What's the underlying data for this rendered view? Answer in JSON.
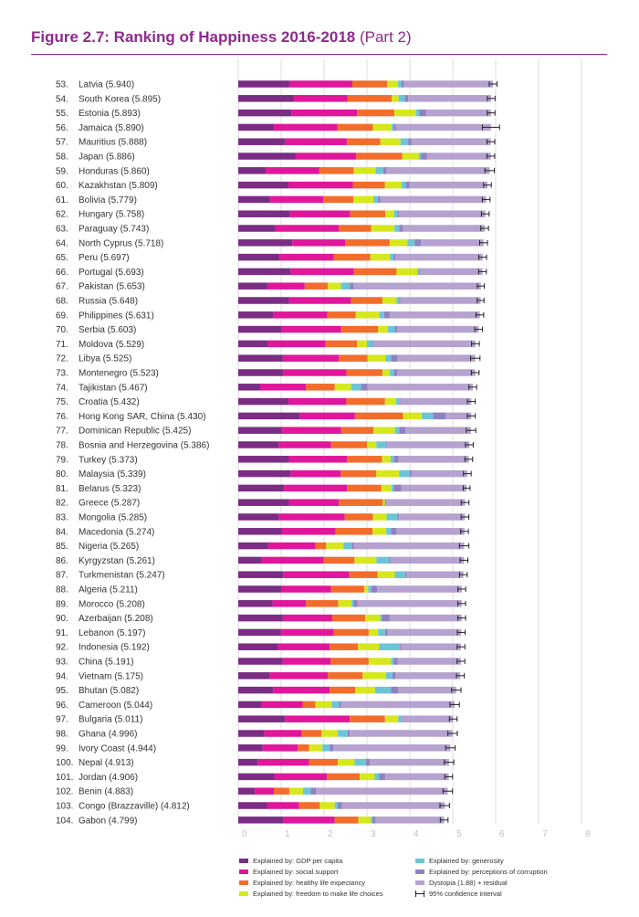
{
  "figure": {
    "title": "Figure 2.7: Ranking of Happiness 2016-2018",
    "subtitle": "(Part 2)"
  },
  "colors": {
    "gdp": "#7a2d82",
    "social": "#e0169b",
    "health": "#f26d2b",
    "freedom": "#d6e81c",
    "generosity": "#6cc5d6",
    "corruption": "#8e82c1",
    "dystopia": "#b5a2cf",
    "ci": "#222222",
    "grid": "#dcdcdc"
  },
  "legend": {
    "items": [
      {
        "key": "gdp",
        "label": "Explained by: GDP per capita"
      },
      {
        "key": "social",
        "label": "Explained by: social support"
      },
      {
        "key": "health",
        "label": "Explained by: healthy life expectancy"
      },
      {
        "key": "freedom",
        "label": "Explained by: freedom to make life choices"
      },
      {
        "key": "generosity",
        "label": "Explained by: generosity"
      },
      {
        "key": "corruption",
        "label": "Explained by: perceptions of corruption"
      },
      {
        "key": "dystopia",
        "label": "Dystopia (1.88) + residual"
      },
      {
        "key": "ci",
        "label": "95% confidence interval"
      }
    ]
  },
  "chart_data": {
    "type": "bar",
    "orientation": "horizontal",
    "stacked": true,
    "xlim": [
      0,
      8
    ],
    "x_ticks": [
      "0",
      "1",
      "2",
      "3",
      "4",
      "5",
      "6",
      "7",
      "8"
    ],
    "grid": true,
    "components": [
      "gdp",
      "social",
      "health",
      "freedom",
      "generosity",
      "corruption",
      "dystopia"
    ],
    "rows": [
      {
        "rank": "53.",
        "name": "Latvia (5.940)",
        "score": 5.94,
        "ci": 0.09,
        "parts": [
          1.19,
          1.47,
          0.81,
          0.25,
          0.08,
          0.06
        ]
      },
      {
        "rank": "54.",
        "name": "South Korea (5.895)",
        "score": 5.895,
        "ci": 0.09,
        "parts": [
          1.3,
          1.25,
          1.03,
          0.16,
          0.14,
          0.08
        ]
      },
      {
        "rank": "55.",
        "name": "Estonia (5.893)",
        "score": 5.893,
        "ci": 0.09,
        "parts": [
          1.24,
          1.53,
          0.87,
          0.5,
          0.08,
          0.16
        ]
      },
      {
        "rank": "56.",
        "name": "Jamaica (5.890)",
        "score": 5.89,
        "ci": 0.2,
        "parts": [
          0.82,
          1.49,
          0.83,
          0.43,
          0.05,
          0.05
        ]
      },
      {
        "rank": "57.",
        "name": "Mauritius (5.888)",
        "score": 5.888,
        "ci": 0.09,
        "parts": [
          1.1,
          1.43,
          0.78,
          0.47,
          0.18,
          0.08
        ]
      },
      {
        "rank": "58.",
        "name": "Japan (5.886)",
        "score": 5.886,
        "ci": 0.09,
        "parts": [
          1.33,
          1.42,
          1.07,
          0.39,
          0.05,
          0.14
        ]
      },
      {
        "rank": "59.",
        "name": "Honduras (5.860)",
        "score": 5.86,
        "ci": 0.11,
        "parts": [
          0.64,
          1.25,
          0.8,
          0.51,
          0.18,
          0.08
        ]
      },
      {
        "rank": "60.",
        "name": "Kazakhstan (5.809)",
        "score": 5.809,
        "ci": 0.09,
        "parts": [
          1.17,
          1.5,
          0.75,
          0.38,
          0.1,
          0.09
        ]
      },
      {
        "rank": "61.",
        "name": "Bolivia (5.779)",
        "score": 5.779,
        "ci": 0.09,
        "parts": [
          0.75,
          1.23,
          0.7,
          0.47,
          0.1,
          0.06
        ]
      },
      {
        "rank": "62.",
        "name": "Hungary (5.758)",
        "score": 5.758,
        "ci": 0.09,
        "parts": [
          1.2,
          1.41,
          0.82,
          0.2,
          0.08,
          0.04
        ]
      },
      {
        "rank": "63.",
        "name": "Paraguay (5.743)",
        "score": 5.743,
        "ci": 0.09,
        "parts": [
          0.87,
          1.47,
          0.76,
          0.54,
          0.11,
          0.08
        ]
      },
      {
        "rank": "64.",
        "name": "North Cyprus (5.718)",
        "score": 5.718,
        "ci": 0.09,
        "parts": [
          1.26,
          1.23,
          1.04,
          0.41,
          0.17,
          0.15
        ]
      },
      {
        "rank": "65.",
        "name": "Peru (5.697)",
        "score": 5.697,
        "ci": 0.09,
        "parts": [
          0.96,
          1.27,
          0.85,
          0.46,
          0.08,
          0.04
        ]
      },
      {
        "rank": "66.",
        "name": "Portugal (5.693)",
        "score": 5.693,
        "ci": 0.09,
        "parts": [
          1.22,
          1.47,
          1.0,
          0.48,
          0.04,
          0.02
        ]
      },
      {
        "rank": "67.",
        "name": "Pakistan (5.653)",
        "score": 5.653,
        "ci": 0.08,
        "parts": [
          0.68,
          0.87,
          0.54,
          0.3,
          0.21,
          0.09
        ]
      },
      {
        "rank": "68.",
        "name": "Russia (5.648)",
        "score": 5.648,
        "ci": 0.08,
        "parts": [
          1.18,
          1.45,
          0.73,
          0.33,
          0.06,
          0.03
        ]
      },
      {
        "rank": "69.",
        "name": "Philippines (5.631)",
        "score": 5.631,
        "ci": 0.09,
        "parts": [
          0.81,
          1.27,
          0.66,
          0.55,
          0.11,
          0.13
        ]
      },
      {
        "rank": "70.",
        "name": "Serbia (5.603)",
        "score": 5.603,
        "ci": 0.09,
        "parts": [
          1.0,
          1.4,
          0.86,
          0.23,
          0.16,
          0.05
        ]
      },
      {
        "rank": "71.",
        "name": "Moldova (5.529)",
        "score": 5.529,
        "ci": 0.09,
        "parts": [
          0.68,
          1.35,
          0.74,
          0.23,
          0.13,
          0.02
        ]
      },
      {
        "rank": "72.",
        "name": "Libya (5.525)",
        "score": 5.525,
        "ci": 0.11,
        "parts": [
          1.04,
          1.3,
          0.67,
          0.42,
          0.13,
          0.15
        ]
      },
      {
        "rank": "73.",
        "name": "Montenegro (5.523)",
        "score": 5.523,
        "ci": 0.09,
        "parts": [
          1.05,
          1.47,
          0.84,
          0.17,
          0.1,
          0.08
        ]
      },
      {
        "rank": "74.",
        "name": "Tajikistan (5.467)",
        "score": 5.467,
        "ci": 0.09,
        "parts": [
          0.51,
          1.07,
          0.67,
          0.38,
          0.23,
          0.15
        ]
      },
      {
        "rank": "75.",
        "name": "Croatia (5.432)",
        "score": 5.432,
        "ci": 0.09,
        "parts": [
          1.17,
          1.35,
          0.9,
          0.26,
          0.08,
          0.02
        ]
      },
      {
        "rank": "76.",
        "name": "Hong Kong SAR, China (5.430)",
        "score": 5.43,
        "ci": 0.09,
        "parts": [
          1.44,
          1.28,
          1.12,
          0.44,
          0.26,
          0.29
        ]
      },
      {
        "rank": "77.",
        "name": "Dominican Republic (5.425)",
        "score": 5.425,
        "ci": 0.11,
        "parts": [
          1.02,
          1.38,
          0.75,
          0.5,
          0.1,
          0.15
        ]
      },
      {
        "rank": "78.",
        "name": "Bosnia and Herzegovina (5.386)",
        "score": 5.386,
        "ci": 0.09,
        "parts": [
          0.95,
          1.21,
          0.84,
          0.22,
          0.23,
          0.02
        ]
      },
      {
        "rank": "79.",
        "name": "Turkey (5.373)",
        "score": 5.373,
        "ci": 0.09,
        "parts": [
          1.18,
          1.36,
          0.81,
          0.2,
          0.08,
          0.11
        ]
      },
      {
        "rank": "80.",
        "name": "Malaysia (5.339)",
        "score": 5.339,
        "ci": 0.09,
        "parts": [
          1.22,
          1.17,
          0.83,
          0.53,
          0.25,
          0.04
        ]
      },
      {
        "rank": "81.",
        "name": "Belarus (5.323)",
        "score": 5.323,
        "ci": 0.08,
        "parts": [
          1.07,
          1.47,
          0.79,
          0.24,
          0.05,
          0.18
        ]
      },
      {
        "rank": "82.",
        "name": "Greece (5.287)",
        "score": 5.287,
        "ci": 0.09,
        "parts": [
          1.18,
          1.16,
          1.03,
          0.05,
          0.0,
          0.03
        ]
      },
      {
        "rank": "83.",
        "name": "Mongolia (5.285)",
        "score": 5.285,
        "ci": 0.09,
        "parts": [
          0.95,
          1.53,
          0.66,
          0.32,
          0.25,
          0.04
        ]
      },
      {
        "rank": "84.",
        "name": "Macedonia (5.274)",
        "score": 5.274,
        "ci": 0.09,
        "parts": [
          1.01,
          1.26,
          0.86,
          0.32,
          0.11,
          0.13
        ]
      },
      {
        "rank": "85.",
        "name": "Nigeria (5.265)",
        "score": 5.265,
        "ci": 0.11,
        "parts": [
          0.7,
          1.1,
          0.25,
          0.4,
          0.2,
          0.05
        ]
      },
      {
        "rank": "86.",
        "name": "Kyrgyzstan (5.261)",
        "score": 5.261,
        "ci": 0.09,
        "parts": [
          0.55,
          1.44,
          0.72,
          0.51,
          0.3,
          0.03
        ]
      },
      {
        "rank": "87.",
        "name": "Turkmenistan (5.247)",
        "score": 5.247,
        "ci": 0.09,
        "parts": [
          1.05,
          1.54,
          0.66,
          0.4,
          0.24,
          0.03
        ]
      },
      {
        "rank": "88.",
        "name": "Algeria (5.211)",
        "score": 5.211,
        "ci": 0.09,
        "parts": [
          1.0,
          1.16,
          0.78,
          0.09,
          0.07,
          0.14
        ]
      },
      {
        "rank": "89.",
        "name": "Morocco (5.208)",
        "score": 5.208,
        "ci": 0.09,
        "parts": [
          0.8,
          0.78,
          0.75,
          0.31,
          0.05,
          0.09
        ]
      },
      {
        "rank": "90.",
        "name": "Azerbaijan (5.208)",
        "score": 5.208,
        "ci": 0.09,
        "parts": [
          1.04,
          1.15,
          0.77,
          0.35,
          0.04,
          0.18
        ]
      },
      {
        "rank": "91.",
        "name": "Lebanon (5.197)",
        "score": 5.197,
        "ci": 0.09,
        "parts": [
          0.99,
          1.24,
          0.81,
          0.22,
          0.16,
          0.06
        ]
      },
      {
        "rank": "92.",
        "name": "Indonesia (5.192)",
        "score": 5.192,
        "ci": 0.09,
        "parts": [
          0.93,
          1.2,
          0.66,
          0.49,
          0.49,
          0.03
        ]
      },
      {
        "rank": "93.",
        "name": "China (5.191)",
        "score": 5.191,
        "ci": 0.09,
        "parts": [
          1.03,
          1.12,
          0.89,
          0.52,
          0.06,
          0.1
        ]
      },
      {
        "rank": "94.",
        "name": "Vietnam (5.175)",
        "score": 5.175,
        "ci": 0.09,
        "parts": [
          0.74,
          1.35,
          0.81,
          0.54,
          0.15,
          0.07
        ]
      },
      {
        "rank": "95.",
        "name": "Bhutan (5.082)",
        "score": 5.082,
        "ci": 0.11,
        "parts": [
          0.81,
          1.32,
          0.6,
          0.46,
          0.37,
          0.17
        ]
      },
      {
        "rank": "96.",
        "name": "Cameroon (5.044)",
        "score": 5.044,
        "ci": 0.11,
        "parts": [
          0.55,
          0.95,
          0.3,
          0.38,
          0.17,
          0.05
        ]
      },
      {
        "rank": "97.",
        "name": "Bulgaria (5.011)",
        "score": 5.011,
        "ci": 0.09,
        "parts": [
          1.09,
          1.51,
          0.82,
          0.31,
          0.08,
          0.01
        ]
      },
      {
        "rank": "98.",
        "name": "Ghana (4.996)",
        "score": 4.996,
        "ci": 0.11,
        "parts": [
          0.61,
          0.87,
          0.46,
          0.38,
          0.23,
          0.05
        ]
      },
      {
        "rank": "99.",
        "name": "Ivory Coast (4.944)",
        "score": 4.944,
        "ci": 0.11,
        "parts": [
          0.57,
          0.82,
          0.26,
          0.31,
          0.17,
          0.09
        ]
      },
      {
        "rank": "100.",
        "name": "Nepal (4.913)",
        "score": 4.913,
        "ci": 0.11,
        "parts": [
          0.45,
          1.2,
          0.67,
          0.39,
          0.27,
          0.09
        ]
      },
      {
        "rank": "101.",
        "name": "Jordan (4.906)",
        "score": 4.906,
        "ci": 0.09,
        "parts": [
          0.84,
          1.23,
          0.76,
          0.35,
          0.1,
          0.15
        ]
      },
      {
        "rank": "102.",
        "name": "Benin (4.883)",
        "score": 4.883,
        "ci": 0.11,
        "parts": [
          0.39,
          0.44,
          0.36,
          0.32,
          0.18,
          0.12
        ]
      },
      {
        "rank": "103.",
        "name": "Congo (Brazzaville) (4.812)",
        "score": 4.812,
        "ci": 0.11,
        "parts": [
          0.67,
          0.75,
          0.48,
          0.35,
          0.07,
          0.1
        ]
      },
      {
        "rank": "104.",
        "name": "Gabon (4.799)",
        "score": 4.799,
        "ci": 0.09,
        "parts": [
          1.06,
          1.19,
          0.55,
          0.29,
          0.04,
          0.07
        ]
      }
    ]
  }
}
